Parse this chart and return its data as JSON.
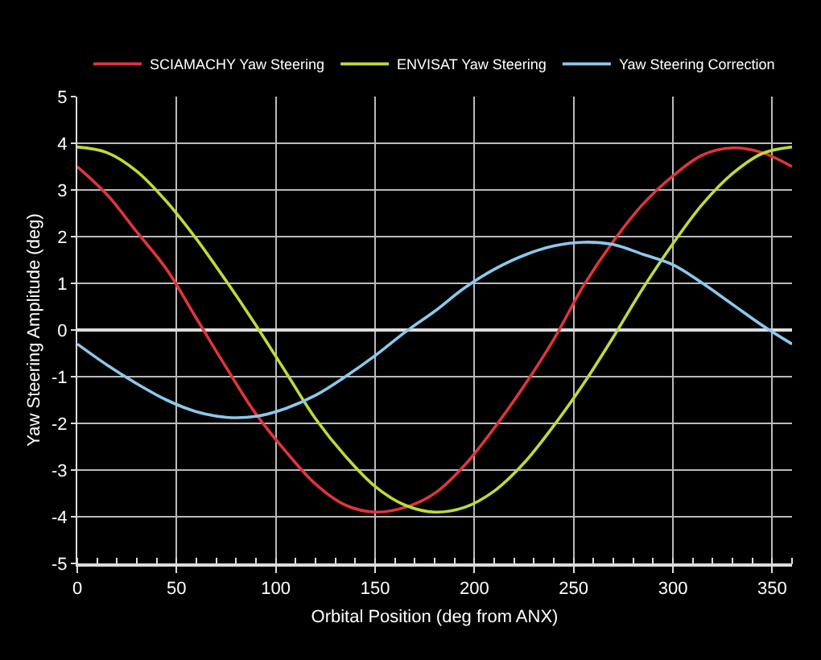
{
  "chart_data": {
    "type": "line",
    "xlabel": "Orbital Position (deg from ANX)",
    "ylabel": "Yaw Steering Amplitude (deg)",
    "x": [
      0,
      15,
      30,
      45,
      60,
      75,
      90,
      105,
      120,
      135,
      150,
      165,
      180,
      195,
      210,
      225,
      240,
      255,
      270,
      285,
      300,
      315,
      330,
      345,
      360
    ],
    "series": [
      {
        "name": "SCIAMACHY Yaw Steering",
        "color": "#e0343c",
        "values": [
          3.5,
          2.9,
          2.1,
          1.3,
          0.25,
          -0.8,
          -1.8,
          -2.6,
          -3.3,
          -3.75,
          -3.9,
          -3.8,
          -3.5,
          -2.9,
          -2.1,
          -1.2,
          -0.2,
          0.95,
          1.9,
          2.7,
          3.3,
          3.75,
          3.9,
          3.8,
          3.5
        ]
      },
      {
        "name": "ENVISAT Yaw Steering",
        "color": "#bcdc3c",
        "values": [
          3.92,
          3.8,
          3.4,
          2.75,
          1.95,
          1.05,
          0.1,
          -0.9,
          -1.9,
          -2.7,
          -3.35,
          -3.75,
          -3.9,
          -3.8,
          -3.45,
          -2.85,
          -2.05,
          -1.15,
          -0.15,
          0.9,
          1.85,
          2.7,
          3.35,
          3.78,
          3.92
        ]
      },
      {
        "name": "Yaw Steering Correction",
        "color": "#8cc8ec",
        "values": [
          -0.3,
          -0.75,
          -1.15,
          -1.5,
          -1.75,
          -1.87,
          -1.85,
          -1.68,
          -1.4,
          -1.0,
          -0.55,
          -0.05,
          0.4,
          0.9,
          1.3,
          1.6,
          1.8,
          1.88,
          1.83,
          1.62,
          1.4,
          1.0,
          0.55,
          0.1,
          -0.3
        ]
      }
    ],
    "xlim": [
      0,
      360
    ],
    "xticks": [
      0,
      50,
      100,
      150,
      200,
      250,
      300,
      350
    ],
    "ylim": [
      -5,
      5
    ],
    "yticks": [
      -5,
      -4,
      -3,
      -2,
      -1,
      0,
      1,
      2,
      3,
      4,
      5
    ],
    "grid": true,
    "legend": "top",
    "marker": "none",
    "line_style": "solid"
  }
}
